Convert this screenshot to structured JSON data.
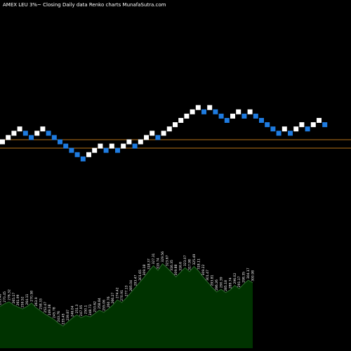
{
  "title": "AMEX LEU 3%~ Closing Daily data Renko charts MunafaSutra.com",
  "colors": {
    "background": "#000000",
    "up_brick": "#ffffff",
    "down_brick": "#1e7be0",
    "reference_line": "#b8741a",
    "volume_fill": "#003300",
    "volume_line": "#2e6b2e",
    "label_text": "#ffffff"
  },
  "chart_data": [
    {
      "type": "renko",
      "bricks": [
        {
          "level": 0,
          "dir": "up"
        },
        {
          "level": 1,
          "dir": "up"
        },
        {
          "level": 2,
          "dir": "up"
        },
        {
          "level": 3,
          "dir": "up"
        },
        {
          "level": 2,
          "dir": "down"
        },
        {
          "level": 1,
          "dir": "down"
        },
        {
          "level": 2,
          "dir": "up"
        },
        {
          "level": 3,
          "dir": "up"
        },
        {
          "level": 2,
          "dir": "down"
        },
        {
          "level": 1,
          "dir": "down"
        },
        {
          "level": 0,
          "dir": "down"
        },
        {
          "level": -1,
          "dir": "down"
        },
        {
          "level": -2,
          "dir": "down"
        },
        {
          "level": -3,
          "dir": "down"
        },
        {
          "level": -4,
          "dir": "down"
        },
        {
          "level": -3,
          "dir": "up"
        },
        {
          "level": -2,
          "dir": "up"
        },
        {
          "level": -1,
          "dir": "up"
        },
        {
          "level": -2,
          "dir": "down"
        },
        {
          "level": -1,
          "dir": "up"
        },
        {
          "level": -2,
          "dir": "down"
        },
        {
          "level": -1,
          "dir": "up"
        },
        {
          "level": 0,
          "dir": "up"
        },
        {
          "level": -1,
          "dir": "down"
        },
        {
          "level": 0,
          "dir": "up"
        },
        {
          "level": 1,
          "dir": "up"
        },
        {
          "level": 2,
          "dir": "up"
        },
        {
          "level": 1,
          "dir": "down"
        },
        {
          "level": 2,
          "dir": "up"
        },
        {
          "level": 3,
          "dir": "up"
        },
        {
          "level": 4,
          "dir": "up"
        },
        {
          "level": 5,
          "dir": "up"
        },
        {
          "level": 6,
          "dir": "up"
        },
        {
          "level": 7,
          "dir": "up"
        },
        {
          "level": 8,
          "dir": "up"
        },
        {
          "level": 7,
          "dir": "down"
        },
        {
          "level": 8,
          "dir": "up"
        },
        {
          "level": 7,
          "dir": "down"
        },
        {
          "level": 6,
          "dir": "down"
        },
        {
          "level": 5,
          "dir": "down"
        },
        {
          "level": 6,
          "dir": "up"
        },
        {
          "level": 7,
          "dir": "up"
        },
        {
          "level": 6,
          "dir": "down"
        },
        {
          "level": 7,
          "dir": "up"
        },
        {
          "level": 6,
          "dir": "down"
        },
        {
          "level": 5,
          "dir": "down"
        },
        {
          "level": 4,
          "dir": "down"
        },
        {
          "level": 3,
          "dir": "down"
        },
        {
          "level": 2,
          "dir": "down"
        },
        {
          "level": 3,
          "dir": "up"
        },
        {
          "level": 2,
          "dir": "down"
        },
        {
          "level": 3,
          "dir": "up"
        },
        {
          "level": 4,
          "dir": "up"
        },
        {
          "level": 3,
          "dir": "down"
        },
        {
          "level": 4,
          "dir": "up"
        },
        {
          "level": 5,
          "dir": "up"
        },
        {
          "level": 4,
          "dir": "down"
        }
      ],
      "reference_lines": 2
    },
    {
      "type": "area",
      "values": [
        266,
        270,
        273,
        268,
        265,
        262,
        266,
        271,
        264,
        259,
        254,
        250,
        246,
        240,
        236,
        242,
        248,
        253,
        249,
        252,
        250,
        255,
        260,
        257,
        262,
        268,
        276,
        272,
        279,
        287,
        295,
        303,
        311,
        320,
        328,
        321,
        331,
        325,
        318,
        311,
        318,
        325,
        319,
        327,
        320,
        311,
        303,
        295,
        288,
        292,
        287,
        291,
        298,
        293,
        300,
        306,
        302
      ],
      "labels": [
        "263.46",
        "270.45",
        "276.32",
        "265.17",
        "261.99",
        "259.52",
        "264.11",
        "270.58",
        "263.9",
        "258.33",
        "252.47",
        "249.08",
        "245.78",
        "243.76",
        "235.45",
        "239.87",
        "246.04",
        "251.3",
        "247.95",
        "250.1",
        "248.73",
        "253.62",
        "258.84",
        "255.06",
        "260.76",
        "266.27",
        "274.42",
        "270.91",
        "277.13",
        "285.04",
        "293.47",
        "301.65",
        "309.18",
        "318.37",
        "327.31",
        "319.74",
        "329.56",
        "323.67",
        "316.35",
        "309.88",
        "316.6",
        "323.07",
        "317.98",
        "325.49",
        "318.11",
        "309.22",
        "301.47",
        "293.81",
        "286.26",
        "290.39",
        "285.18",
        "289.74",
        "296.02",
        "291.17",
        "298.35",
        "304.17",
        "300.98"
      ]
    }
  ]
}
